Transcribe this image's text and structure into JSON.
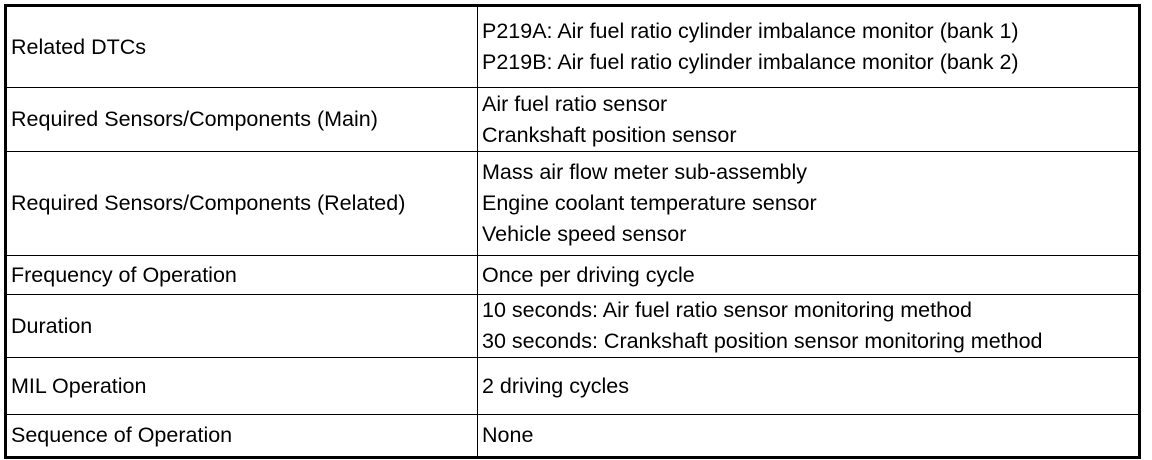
{
  "table": {
    "rows": [
      [
        "Related DTCs",
        [
          "P219A: Air fuel ratio cylinder imbalance monitor (bank 1)",
          "P219B: Air fuel ratio cylinder imbalance monitor (bank 2)"
        ]
      ],
      [
        "Required Sensors/Components (Main)",
        [
          "Air fuel ratio sensor",
          "Crankshaft position sensor"
        ]
      ],
      [
        "Required Sensors/Components (Related)",
        [
          "Mass air flow meter sub-assembly",
          "Engine coolant temperature sensor",
          "Vehicle speed sensor"
        ]
      ],
      [
        "Frequency of Operation",
        [
          "Once per driving cycle"
        ]
      ],
      [
        "Duration",
        [
          "10 seconds: Air fuel ratio sensor monitoring method",
          "30 seconds: Crankshaft position sensor monitoring method"
        ]
      ],
      [
        "MIL Operation",
        [
          "2 driving cycles"
        ]
      ],
      [
        "Sequence of Operation",
        [
          "None"
        ]
      ]
    ]
  }
}
